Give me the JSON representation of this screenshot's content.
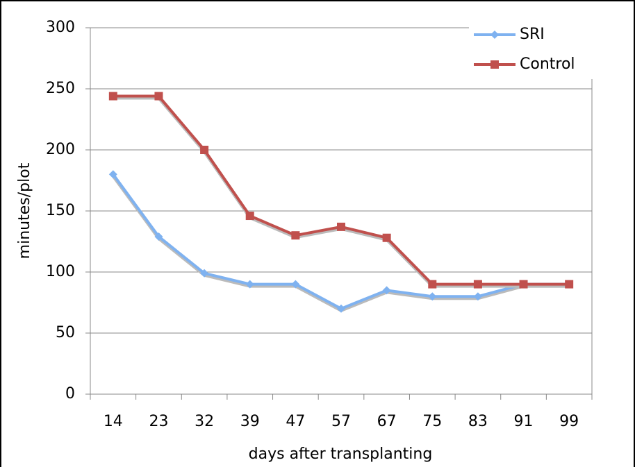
{
  "chart_data": {
    "type": "line",
    "x_label": "days after transplanting",
    "y_label": "minutes/plot",
    "categories": [
      "14",
      "23",
      "32",
      "39",
      "47",
      "57",
      "67",
      "75",
      "83",
      "91",
      "99"
    ],
    "series": [
      {
        "name": "SRI",
        "color": "#7fb2f0",
        "values": [
          180,
          129,
          99,
          90,
          90,
          70,
          85,
          80,
          80,
          90,
          90
        ]
      },
      {
        "name": "Control",
        "color": "#c0504d",
        "values": [
          244,
          244,
          200,
          146,
          130,
          137,
          128,
          90,
          90,
          90,
          90
        ]
      }
    ],
    "ylim": [
      0,
      300
    ],
    "yticks": [
      0,
      50,
      100,
      150,
      200,
      250,
      300
    ],
    "grid": true,
    "legend": "top-right"
  }
}
